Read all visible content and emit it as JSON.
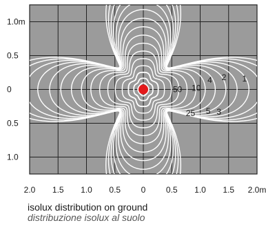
{
  "chart_data": {
    "type": "contour",
    "x_ticks": [
      "2.0",
      "1.5",
      "1.0",
      "0.5",
      "0",
      "0.5",
      "1.0",
      "1.5",
      "2.0m"
    ],
    "y_ticks": [
      "1.0m",
      "0.5",
      "0",
      "0.5",
      "1.0"
    ],
    "x_range": [
      -2.0,
      2.0
    ],
    "y_range": [
      -1.25,
      1.25
    ],
    "grid": true,
    "contour_levels": [
      "1",
      "2",
      "3",
      "4",
      "5",
      "10",
      "25",
      "50"
    ],
    "source_point": [
      0,
      0
    ],
    "colors": {
      "plot_bg": "#9b9b9b",
      "grid": "#222222",
      "contour": "#ffffff",
      "source": "#e3191a"
    }
  },
  "caption": {
    "title": "isolux distribution on ground",
    "subtitle": "distribuzione isolux al suolo"
  }
}
